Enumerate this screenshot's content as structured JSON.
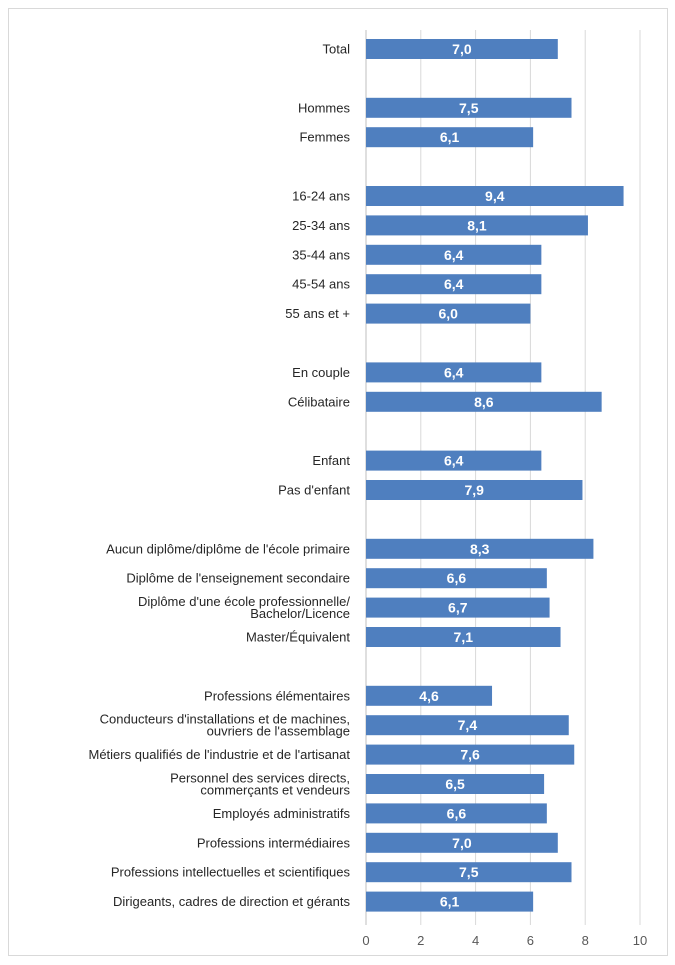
{
  "chart_data": {
    "type": "bar",
    "orientation": "horizontal",
    "bar_color": "#4f7fbf",
    "grid": true,
    "xlim": [
      0,
      10
    ],
    "x_ticks": [
      "0",
      "2",
      "4",
      "6",
      "8",
      "10"
    ],
    "categories": [
      [
        "Total"
      ],
      [
        "Hommes"
      ],
      [
        "Femmes"
      ],
      [
        "16-24 ans"
      ],
      [
        "25-34 ans"
      ],
      [
        "35-44 ans"
      ],
      [
        "45-54 ans"
      ],
      [
        "55 ans et +"
      ],
      [
        "En couple"
      ],
      [
        "Célibataire"
      ],
      [
        "Enfant"
      ],
      [
        "Pas d'enfant"
      ],
      [
        "Aucun diplôme/diplôme de l'école primaire"
      ],
      [
        "Diplôme de l'enseignement secondaire"
      ],
      [
        "Diplôme d'une école professionnelle/",
        "Bachelor/Licence"
      ],
      [
        "Master/Équivalent"
      ],
      [
        "Professions élémentaires"
      ],
      [
        "Conducteurs d'installations et de machines,",
        "ouvriers de l'assemblage"
      ],
      [
        "Métiers qualifiés de l'industrie et de l'artisanat"
      ],
      [
        "Personnel des services directs,",
        "commerçants et vendeurs"
      ],
      [
        "Employés administratifs"
      ],
      [
        "Professions intermédiaires"
      ],
      [
        "Professions intellectuelles et scientifiques"
      ],
      [
        "Dirigeants, cadres de direction et gérants"
      ]
    ],
    "values": [
      7.0,
      7.5,
      6.1,
      9.4,
      8.1,
      6.4,
      6.4,
      6.0,
      6.4,
      8.6,
      6.4,
      7.9,
      8.3,
      6.6,
      6.7,
      7.1,
      4.6,
      7.4,
      7.6,
      6.5,
      6.6,
      7.0,
      7.5,
      6.1
    ],
    "value_labels": [
      "7,0",
      "7,5",
      "6,1",
      "9,4",
      "8,1",
      "6,4",
      "6,4",
      "6,0",
      "6,4",
      "8,6",
      "6,4",
      "7,9",
      "8,3",
      "6,6",
      "6,7",
      "7,1",
      "4,6",
      "7,4",
      "7,6",
      "6,5",
      "6,6",
      "7,0",
      "7,5",
      "6,1"
    ],
    "group_sizes": [
      1,
      2,
      5,
      2,
      2,
      4,
      8
    ]
  }
}
